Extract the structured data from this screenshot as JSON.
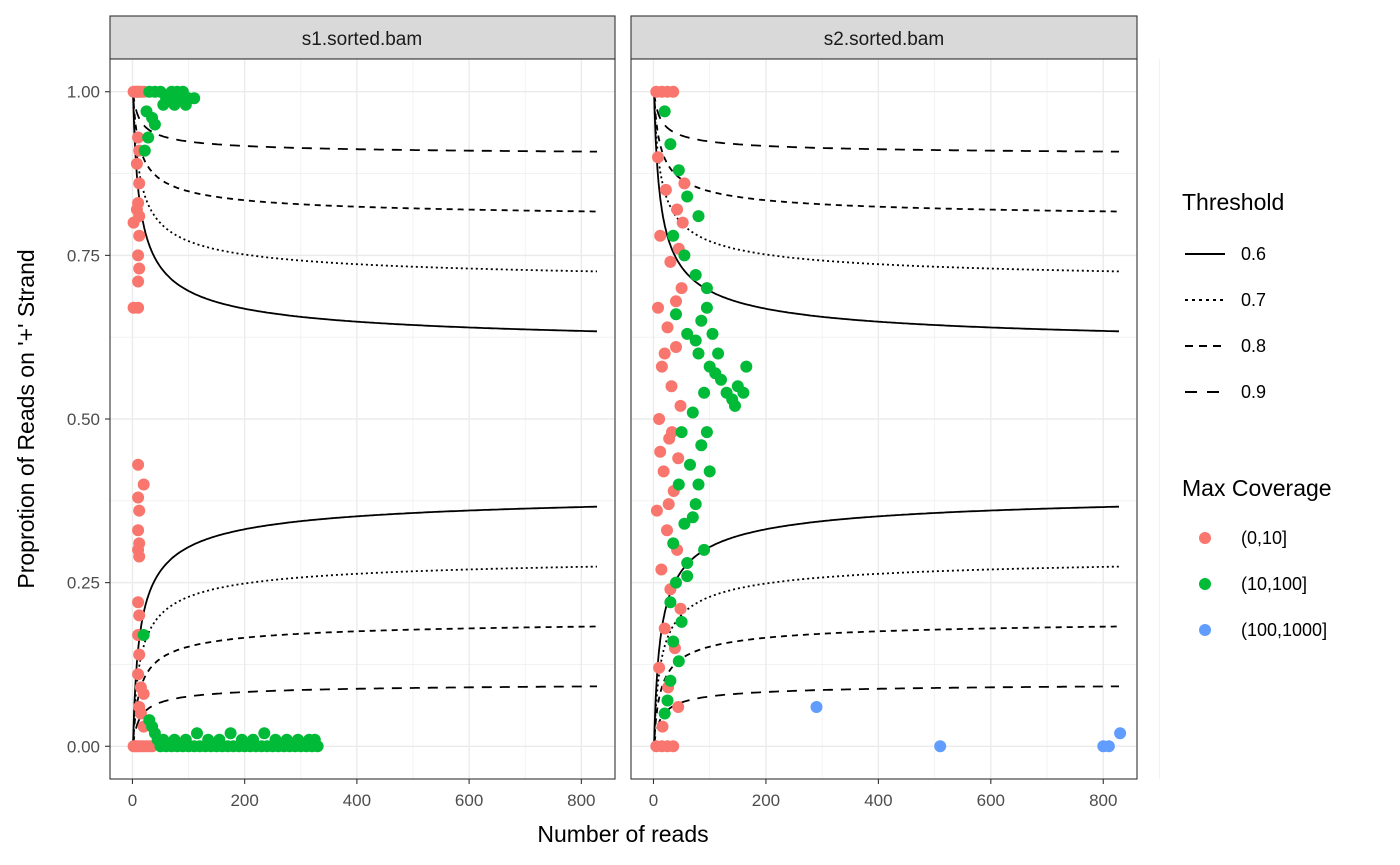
{
  "chart_data": {
    "type": "scatter",
    "xlabel": "Number of reads",
    "ylabel": "Proprotion of Reads on '+' Strand",
    "xlim": [
      -40,
      860
    ],
    "ylim": [
      -0.05,
      1.05
    ],
    "x_ticks": [
      0,
      200,
      400,
      600,
      800
    ],
    "x_tick_labels": [
      "0",
      "200",
      "400",
      "600",
      "800"
    ],
    "y_ticks": [
      0,
      0.25,
      0.5,
      0.75,
      1.0
    ],
    "y_tick_labels": [
      "0.00",
      "0.25",
      "0.50",
      "0.75",
      "1.00"
    ],
    "grid": true,
    "facets": [
      "s1.sorted.bam",
      "s2.sorted.bam"
    ],
    "legend_position": "right",
    "threshold_legend": {
      "title": "Threshold",
      "entries": [
        {
          "label": "0.6",
          "dash": "solid"
        },
        {
          "label": "0.7",
          "dash": "dotted"
        },
        {
          "label": "0.8",
          "dash": "dashed"
        },
        {
          "label": "0.9",
          "dash": "longdash"
        }
      ],
      "thresholds": [
        0.6,
        0.7,
        0.8,
        0.9
      ],
      "x_max": 830
    },
    "coverage_legend": {
      "title": "Max Coverage",
      "entries": [
        {
          "label": "(0,10]",
          "color": "#F8766D"
        },
        {
          "label": "(10,100]",
          "color": "#00BA38"
        },
        {
          "label": "(100,1000]",
          "color": "#619CFF"
        }
      ]
    },
    "series": [
      {
        "name": "(0,10]",
        "facet": "s1.sorted.bam",
        "color": "#F8766D",
        "points": [
          [
            2,
            1.0
          ],
          [
            5,
            1.0
          ],
          [
            8,
            1.0
          ],
          [
            10,
            1.0
          ],
          [
            12,
            1.0
          ],
          [
            15,
            1.0
          ],
          [
            20,
            1.0
          ],
          [
            10,
            0.93
          ],
          [
            12,
            0.91
          ],
          [
            8,
            0.89
          ],
          [
            12,
            0.86
          ],
          [
            10,
            0.83
          ],
          [
            8,
            0.82
          ],
          [
            12,
            0.81
          ],
          [
            2,
            0.8
          ],
          [
            12,
            0.78
          ],
          [
            10,
            0.75
          ],
          [
            12,
            0.73
          ],
          [
            10,
            0.71
          ],
          [
            2,
            0.67
          ],
          [
            10,
            0.67
          ],
          [
            10,
            0.43
          ],
          [
            20,
            0.4
          ],
          [
            10,
            0.38
          ],
          [
            12,
            0.36
          ],
          [
            10,
            0.33
          ],
          [
            12,
            0.31
          ],
          [
            10,
            0.3
          ],
          [
            12,
            0.29
          ],
          [
            10,
            0.22
          ],
          [
            12,
            0.2
          ],
          [
            10,
            0.17
          ],
          [
            12,
            0.14
          ],
          [
            10,
            0.11
          ],
          [
            15,
            0.09
          ],
          [
            20,
            0.08
          ],
          [
            12,
            0.06
          ],
          [
            15,
            0.05
          ],
          [
            20,
            0.03
          ],
          [
            2,
            0.0
          ],
          [
            5,
            0.0
          ],
          [
            8,
            0.0
          ],
          [
            12,
            0.0
          ],
          [
            15,
            0.0
          ],
          [
            20,
            0.0
          ],
          [
            25,
            0.0
          ],
          [
            30,
            0.0
          ],
          [
            35,
            0.0
          ]
        ]
      },
      {
        "name": "(10,100]",
        "facet": "s1.sorted.bam",
        "color": "#00BA38",
        "points": [
          [
            30,
            1.0
          ],
          [
            40,
            1.0
          ],
          [
            50,
            1.0
          ],
          [
            60,
            0.99
          ],
          [
            70,
            1.0
          ],
          [
            80,
            1.0
          ],
          [
            90,
            1.0
          ],
          [
            100,
            0.99
          ],
          [
            110,
            0.99
          ],
          [
            55,
            0.98
          ],
          [
            65,
            0.99
          ],
          [
            75,
            0.98
          ],
          [
            85,
            0.99
          ],
          [
            95,
            0.98
          ],
          [
            25,
            0.97
          ],
          [
            35,
            0.96
          ],
          [
            40,
            0.95
          ],
          [
            28,
            0.93
          ],
          [
            22,
            0.91
          ],
          [
            20,
            0.17
          ],
          [
            30,
            0.04
          ],
          [
            35,
            0.03
          ],
          [
            40,
            0.02
          ],
          [
            45,
            0.01
          ],
          [
            50,
            0.0
          ],
          [
            60,
            0.0
          ],
          [
            70,
            0.0
          ],
          [
            80,
            0.0
          ],
          [
            90,
            0.0
          ],
          [
            100,
            0.0
          ],
          [
            110,
            0.0
          ],
          [
            120,
            0.0
          ],
          [
            130,
            0.0
          ],
          [
            140,
            0.0
          ],
          [
            150,
            0.0
          ],
          [
            160,
            0.0
          ],
          [
            170,
            0.0
          ],
          [
            180,
            0.0
          ],
          [
            190,
            0.0
          ],
          [
            200,
            0.0
          ],
          [
            210,
            0.0
          ],
          [
            220,
            0.0
          ],
          [
            230,
            0.0
          ],
          [
            240,
            0.0
          ],
          [
            250,
            0.0
          ],
          [
            260,
            0.0
          ],
          [
            270,
            0.0
          ],
          [
            280,
            0.0
          ],
          [
            290,
            0.0
          ],
          [
            300,
            0.0
          ],
          [
            310,
            0.0
          ],
          [
            320,
            0.0
          ],
          [
            330,
            0.0
          ],
          [
            55,
            0.01
          ],
          [
            75,
            0.01
          ],
          [
            95,
            0.01
          ],
          [
            115,
            0.02
          ],
          [
            135,
            0.01
          ],
          [
            155,
            0.01
          ],
          [
            175,
            0.02
          ],
          [
            195,
            0.01
          ],
          [
            215,
            0.01
          ],
          [
            235,
            0.02
          ],
          [
            255,
            0.01
          ],
          [
            275,
            0.01
          ],
          [
            295,
            0.01
          ],
          [
            315,
            0.01
          ],
          [
            325,
            0.01
          ]
        ]
      },
      {
        "name": "(0,10]",
        "facet": "s2.sorted.bam",
        "color": "#F8766D",
        "points": [
          [
            5,
            1.0
          ],
          [
            15,
            1.0
          ],
          [
            25,
            1.0
          ],
          [
            35,
            1.0
          ],
          [
            8,
            0.9
          ],
          [
            22,
            0.85
          ],
          [
            42,
            0.82
          ],
          [
            12,
            0.78
          ],
          [
            30,
            0.74
          ],
          [
            50,
            0.7
          ],
          [
            8,
            0.67
          ],
          [
            25,
            0.64
          ],
          [
            40,
            0.61
          ],
          [
            15,
            0.58
          ],
          [
            32,
            0.55
          ],
          [
            48,
            0.52
          ],
          [
            10,
            0.5
          ],
          [
            28,
            0.47
          ],
          [
            44,
            0.44
          ],
          [
            18,
            0.42
          ],
          [
            36,
            0.39
          ],
          [
            6,
            0.36
          ],
          [
            24,
            0.33
          ],
          [
            42,
            0.3
          ],
          [
            14,
            0.27
          ],
          [
            30,
            0.24
          ],
          [
            48,
            0.21
          ],
          [
            20,
            0.18
          ],
          [
            38,
            0.15
          ],
          [
            10,
            0.12
          ],
          [
            26,
            0.09
          ],
          [
            44,
            0.06
          ],
          [
            16,
            0.03
          ],
          [
            5,
            0.0
          ],
          [
            15,
            0.0
          ],
          [
            25,
            0.0
          ],
          [
            35,
            0.0
          ],
          [
            20,
            0.6
          ],
          [
            33,
            0.48
          ],
          [
            12,
            0.45
          ],
          [
            27,
            0.37
          ],
          [
            40,
            0.68
          ],
          [
            45,
            0.76
          ],
          [
            52,
            0.8
          ],
          [
            55,
            0.86
          ]
        ]
      },
      {
        "name": "(10,100]",
        "facet": "s2.sorted.bam",
        "color": "#00BA38",
        "points": [
          [
            20,
            0.97
          ],
          [
            30,
            0.92
          ],
          [
            45,
            0.88
          ],
          [
            60,
            0.84
          ],
          [
            80,
            0.81
          ],
          [
            35,
            0.78
          ],
          [
            55,
            0.75
          ],
          [
            75,
            0.72
          ],
          [
            95,
            0.7
          ],
          [
            40,
            0.66
          ],
          [
            60,
            0.63
          ],
          [
            80,
            0.6
          ],
          [
            100,
            0.58
          ],
          [
            120,
            0.56
          ],
          [
            130,
            0.54
          ],
          [
            140,
            0.53
          ],
          [
            150,
            0.55
          ],
          [
            160,
            0.54
          ],
          [
            165,
            0.58
          ],
          [
            145,
            0.52
          ],
          [
            110,
            0.57
          ],
          [
            90,
            0.54
          ],
          [
            70,
            0.51
          ],
          [
            50,
            0.48
          ],
          [
            85,
            0.46
          ],
          [
            65,
            0.43
          ],
          [
            45,
            0.4
          ],
          [
            75,
            0.37
          ],
          [
            55,
            0.34
          ],
          [
            35,
            0.31
          ],
          [
            60,
            0.28
          ],
          [
            40,
            0.25
          ],
          [
            30,
            0.22
          ],
          [
            50,
            0.19
          ],
          [
            35,
            0.16
          ],
          [
            45,
            0.13
          ],
          [
            30,
            0.1
          ],
          [
            25,
            0.07
          ],
          [
            20,
            0.05
          ],
          [
            95,
            0.48
          ],
          [
            100,
            0.42
          ],
          [
            80,
            0.4
          ],
          [
            70,
            0.35
          ],
          [
            90,
            0.3
          ],
          [
            60,
            0.26
          ],
          [
            75,
            0.62
          ],
          [
            85,
            0.65
          ],
          [
            95,
            0.67
          ],
          [
            105,
            0.63
          ],
          [
            115,
            0.6
          ]
        ]
      },
      {
        "name": "(100,1000]",
        "facet": "s2.sorted.bam",
        "color": "#619CFF",
        "points": [
          [
            290,
            0.06
          ],
          [
            510,
            0.0
          ],
          [
            800,
            0.0
          ],
          [
            810,
            0.0
          ],
          [
            830,
            0.02
          ]
        ]
      }
    ]
  }
}
